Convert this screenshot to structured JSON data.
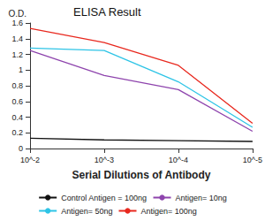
{
  "chart_data": {
    "type": "line",
    "title": "ELISA Result",
    "x_label": "Serial Dilutions of Antibody",
    "y_label": "O.D.",
    "x": [
      0.01,
      0.001,
      0.0001,
      1e-05
    ],
    "series": [
      {
        "name": "Control Antigen = 100ng",
        "color": "#111111",
        "values": [
          0.13,
          0.11,
          0.1,
          0.09
        ]
      },
      {
        "name": "Antigen= 10ng",
        "color": "#8e44ad",
        "values": [
          1.25,
          0.93,
          0.75,
          0.22
        ]
      },
      {
        "name": "Antigen= 50ng",
        "color": "#2ec4e6",
        "values": [
          1.28,
          1.25,
          0.85,
          0.27
        ]
      },
      {
        "name": "Antigen= 100ng",
        "color": "#e8281e",
        "values": [
          1.53,
          1.35,
          1.06,
          0.32
        ]
      }
    ],
    "log": "x",
    "xlim": [
      0.01,
      1e-05
    ],
    "xticks": [
      {
        "value": 0.01,
        "label": "10^-2"
      },
      {
        "value": 0.001,
        "label": "10^-3"
      },
      {
        "value": 0.0001,
        "label": "10^-4"
      },
      {
        "value": 1e-05,
        "label": "10^-5"
      }
    ],
    "ylim": [
      0,
      1.6
    ],
    "yticks": [
      0,
      0.2,
      0.4,
      0.6,
      0.8,
      1,
      1.2,
      1.4,
      1.6
    ],
    "grid": false,
    "legend": "bottom"
  }
}
